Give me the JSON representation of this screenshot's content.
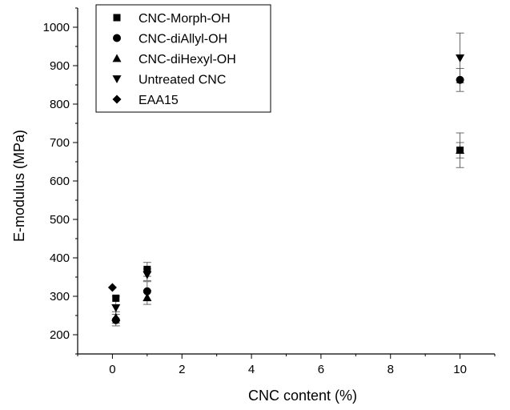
{
  "chart_data": {
    "type": "scatter",
    "title": "",
    "xlabel": "CNC content (%)",
    "ylabel": "E-modulus (MPa)",
    "xlim": [
      -1,
      11
    ],
    "ylim": [
      150,
      1050
    ],
    "xticks": [
      0,
      2,
      4,
      6,
      8,
      10
    ],
    "yticks": [
      200,
      300,
      400,
      500,
      600,
      700,
      800,
      900,
      1000
    ],
    "grid": false,
    "legend_position": "top-left",
    "series": [
      {
        "name": "CNC-Morph-OH",
        "marker": "square",
        "points": [
          {
            "x": 0.1,
            "y": 295,
            "err": 0
          },
          {
            "x": 1,
            "y": 370,
            "err": 18
          },
          {
            "x": 10,
            "y": 680,
            "err": 20
          }
        ]
      },
      {
        "name": "CNC-diAllyl-OH",
        "marker": "circle",
        "points": [
          {
            "x": 0.1,
            "y": 238,
            "err": 15
          },
          {
            "x": 1,
            "y": 313,
            "err": 25
          },
          {
            "x": 10,
            "y": 863,
            "err": 30
          }
        ]
      },
      {
        "name": "CNC-diHexyl-OH",
        "marker": "triangle-up",
        "points": [
          {
            "x": 0.1,
            "y": 245,
            "err": 15
          },
          {
            "x": 1,
            "y": 297,
            "err": 18
          },
          {
            "x": 10,
            "y": 680,
            "err": 45
          }
        ]
      },
      {
        "name": "Untreated CNC",
        "marker": "triangle-down",
        "points": [
          {
            "x": 0.1,
            "y": 270,
            "err": 30
          },
          {
            "x": 1,
            "y": 356,
            "err": 15
          },
          {
            "x": 10,
            "y": 920,
            "err": 65
          }
        ]
      },
      {
        "name": "EAA15",
        "marker": "diamond",
        "points": [
          {
            "x": 0,
            "y": 323,
            "err": 0
          }
        ]
      }
    ]
  }
}
